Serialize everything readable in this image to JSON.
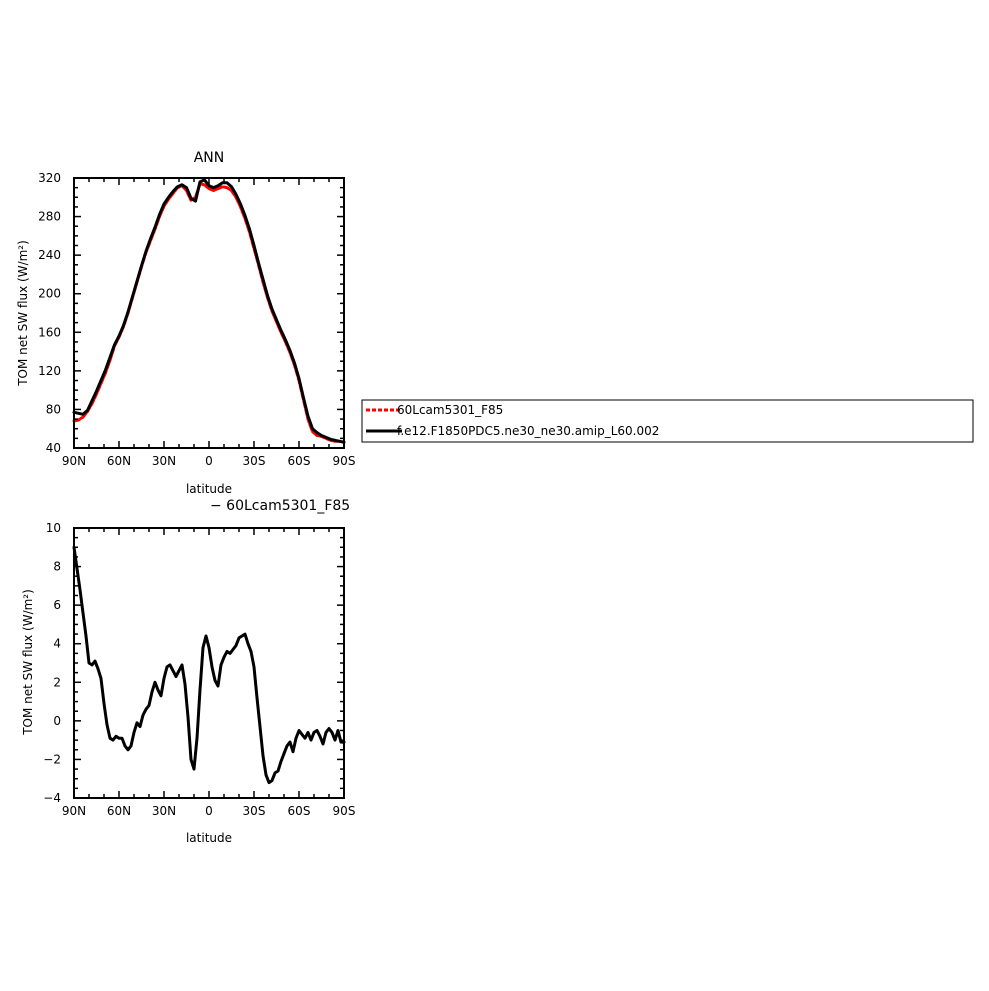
{
  "chart_data": [
    {
      "type": "line",
      "title": "ANN",
      "xlabel": "latitude",
      "ylabel": "TOM net SW flux (W/m²)",
      "xlim": [
        90,
        -90
      ],
      "ylim": [
        40,
        320
      ],
      "x_ticks": [
        90,
        60,
        30,
        0,
        -30,
        -60,
        -90
      ],
      "x_tick_labels": [
        "90N",
        "60N",
        "30N",
        "0",
        "30S",
        "60S",
        "90S"
      ],
      "y_ticks": [
        40,
        80,
        120,
        160,
        200,
        240,
        280,
        320
      ],
      "y_tick_labels": [
        "40",
        "80",
        "120",
        "160",
        "200",
        "240",
        "280",
        "320"
      ],
      "series": [
        {
          "name": "60Lcam5301_F85",
          "color": "#ff0000",
          "dash": true,
          "x": [
            90,
            87,
            84,
            81,
            78,
            75,
            72,
            69,
            66,
            63,
            60,
            57,
            54,
            51,
            48,
            45,
            42,
            39,
            36,
            33,
            30,
            27,
            24,
            21,
            18,
            15,
            12,
            9,
            6,
            3,
            0,
            -3,
            -6,
            -9,
            -12,
            -15,
            -18,
            -21,
            -24,
            -27,
            -30,
            -33,
            -36,
            -39,
            -42,
            -45,
            -48,
            -51,
            -54,
            -57,
            -60,
            -63,
            -66,
            -69,
            -72,
            -75,
            -78,
            -81,
            -84,
            -87,
            -90
          ],
          "values": [
            68,
            69,
            72,
            78,
            86,
            96,
            107,
            118,
            131,
            146,
            155,
            166,
            180,
            196,
            212,
            228,
            243,
            255,
            267,
            280,
            291,
            298,
            304,
            310,
            312,
            307,
            297,
            300,
            314,
            313,
            309,
            307,
            309,
            311,
            310,
            307,
            300,
            290,
            278,
            264,
            247,
            230,
            212,
            196,
            182,
            171,
            160,
            150,
            139,
            126,
            110,
            90,
            70,
            57,
            53,
            52,
            50,
            48,
            47,
            47,
            46
          ]
        },
        {
          "name": "f.e12.F1850PDC5.ne30_ne30.amip_L60.002",
          "color": "#000000",
          "dash": false,
          "x": [
            90,
            87,
            84,
            81,
            78,
            75,
            72,
            69,
            66,
            63,
            60,
            57,
            54,
            51,
            48,
            45,
            42,
            39,
            36,
            33,
            30,
            27,
            24,
            21,
            18,
            15,
            12,
            9,
            6,
            3,
            0,
            -3,
            -6,
            -9,
            -12,
            -15,
            -18,
            -21,
            -24,
            -27,
            -30,
            -33,
            -36,
            -39,
            -42,
            -45,
            -48,
            -51,
            -54,
            -57,
            -60,
            -63,
            -66,
            -69,
            -72,
            -75,
            -78,
            -81,
            -84,
            -87,
            -90
          ],
          "values": [
            77,
            76,
            75,
            79,
            89,
            99,
            110,
            121,
            134,
            147,
            156,
            167,
            181,
            197,
            213,
            229,
            244,
            257,
            269,
            282,
            293,
            300,
            306,
            311,
            313,
            310,
            299,
            296,
            316,
            318,
            312,
            310,
            312,
            315,
            315,
            311,
            303,
            293,
            281,
            267,
            250,
            232,
            215,
            198,
            184,
            173,
            162,
            152,
            141,
            128,
            112,
            92,
            73,
            60,
            56,
            53,
            51,
            49,
            48,
            47,
            46
          ]
        }
      ],
      "legend": {
        "placement": "right",
        "entries": [
          "60Lcam5301_F85",
          "f.e12.F1850PDC5.ne30_ne30.amip_L60.002"
        ]
      }
    },
    {
      "type": "line",
      "title": "− 60Lcam5301_F85",
      "xlabel": "latitude",
      "ylabel": "TOM net SW flux (W/m²)",
      "xlim": [
        90,
        -90
      ],
      "ylim": [
        -4,
        10
      ],
      "x_ticks": [
        90,
        60,
        30,
        0,
        -30,
        -60,
        -90
      ],
      "x_tick_labels": [
        "90N",
        "60N",
        "30N",
        "0",
        "30S",
        "60S",
        "90S"
      ],
      "y_ticks": [
        -4,
        -2,
        0,
        2,
        4,
        6,
        8,
        10
      ],
      "y_tick_labels": [
        "−4",
        "−2",
        "0",
        "2",
        "4",
        "6",
        "8",
        "10"
      ],
      "series": [
        {
          "color": "#000000",
          "dash": false,
          "x": [
            90,
            88,
            86,
            84,
            82,
            80,
            78,
            76,
            74,
            72,
            70,
            68,
            66,
            64,
            62,
            60,
            58,
            56,
            54,
            52,
            50,
            48,
            46,
            44,
            42,
            40,
            38,
            36,
            34,
            32,
            30,
            28,
            26,
            24,
            22,
            20,
            18,
            16,
            14,
            12,
            10,
            8,
            6,
            4,
            2,
            0,
            -2,
            -4,
            -6,
            -8,
            -10,
            -12,
            -14,
            -16,
            -18,
            -20,
            -22,
            -24,
            -26,
            -28,
            -30,
            -32,
            -34,
            -36,
            -38,
            -40,
            -42,
            -44,
            -46,
            -48,
            -50,
            -52,
            -54,
            -56,
            -58,
            -60,
            -62,
            -64,
            -66,
            -68,
            -70,
            -72,
            -74,
            -76,
            -78,
            -80,
            -82,
            -84,
            -86,
            -88,
            -90
          ],
          "values": [
            9.0,
            7.9,
            6.8,
            5.6,
            4.4,
            3.0,
            2.9,
            3.1,
            2.7,
            2.2,
            0.9,
            -0.2,
            -0.9,
            -1.0,
            -0.8,
            -0.9,
            -0.9,
            -1.3,
            -1.5,
            -1.3,
            -0.6,
            -0.1,
            -0.3,
            0.3,
            0.6,
            0.8,
            1.5,
            2.0,
            1.6,
            1.3,
            2.2,
            2.8,
            2.9,
            2.6,
            2.3,
            2.6,
            2.9,
            1.9,
            0.2,
            -2.0,
            -2.5,
            -0.9,
            1.6,
            3.8,
            4.4,
            3.8,
            2.8,
            2.1,
            1.8,
            2.9,
            3.3,
            3.6,
            3.5,
            3.7,
            3.9,
            4.3,
            4.4,
            4.5,
            4.0,
            3.6,
            2.8,
            1.2,
            -0.3,
            -1.8,
            -2.8,
            -3.2,
            -3.1,
            -2.7,
            -2.6,
            -2.1,
            -1.7,
            -1.3,
            -1.1,
            -1.6,
            -0.9,
            -0.5,
            -0.7,
            -0.9,
            -0.6,
            -1.0,
            -0.6,
            -0.5,
            -0.8,
            -1.2,
            -0.6,
            -0.4,
            -0.6,
            -1.0,
            -0.5,
            -1.1,
            -1.1
          ]
        }
      ]
    }
  ]
}
